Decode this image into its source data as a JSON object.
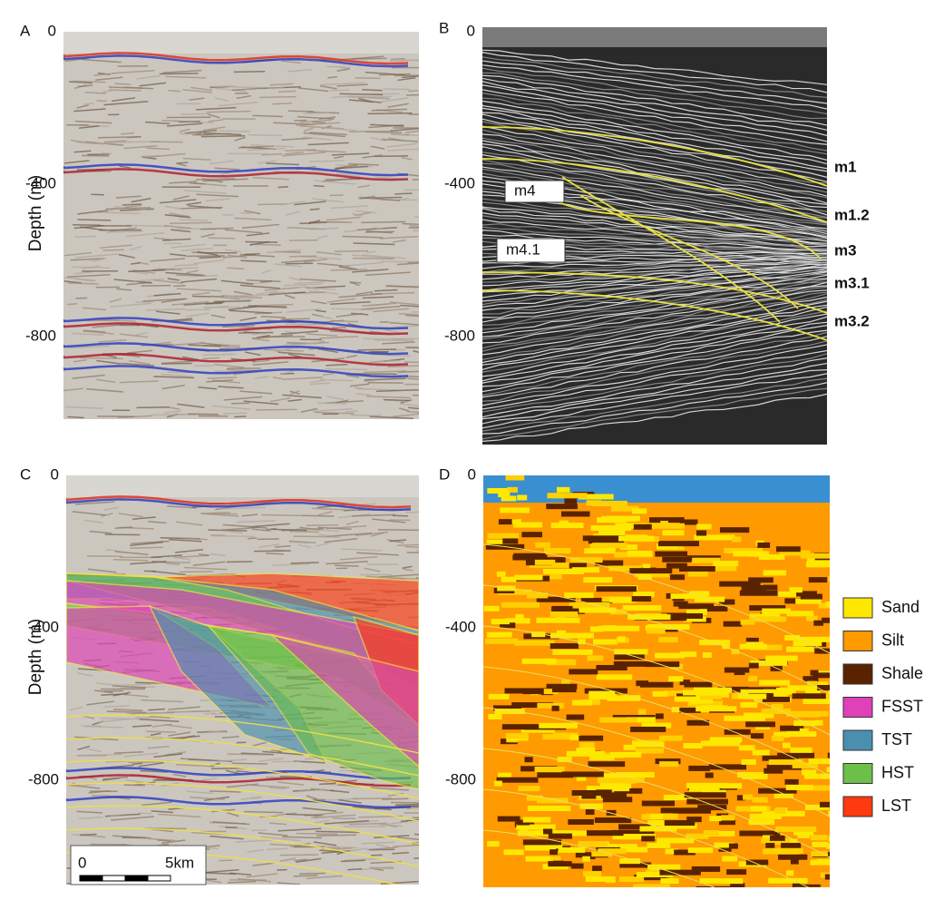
{
  "panels": [
    {
      "letter": "A",
      "ticks": [
        0,
        -400,
        -800
      ],
      "axis_label": "Depth (m)"
    },
    {
      "letter": "B",
      "ticks": [
        0,
        -400,
        -800
      ],
      "horizons": [
        "m1",
        "m1.2",
        "m3",
        "m3.1",
        "m3.2"
      ],
      "boxes": [
        "m4",
        "m4.1"
      ]
    },
    {
      "letter": "C",
      "ticks": [
        0,
        -400,
        -800
      ],
      "axis_label": "Depth (m)",
      "scale_bar": [
        "0",
        "5km"
      ]
    },
    {
      "letter": "D",
      "ticks": [
        0,
        -400,
        -800
      ]
    }
  ],
  "legend": [
    {
      "label": "Sand",
      "color": "#ffe800"
    },
    {
      "label": "Silt",
      "color": "#ff9a00"
    },
    {
      "label": "Shale",
      "color": "#5a2300"
    },
    {
      "label": "FSST",
      "color": "#e040b8"
    },
    {
      "label": "TST",
      "color": "#4a8fb0"
    },
    {
      "label": "HST",
      "color": "#6cc04a"
    },
    {
      "label": "LST",
      "color": "#ff3a10"
    }
  ]
}
